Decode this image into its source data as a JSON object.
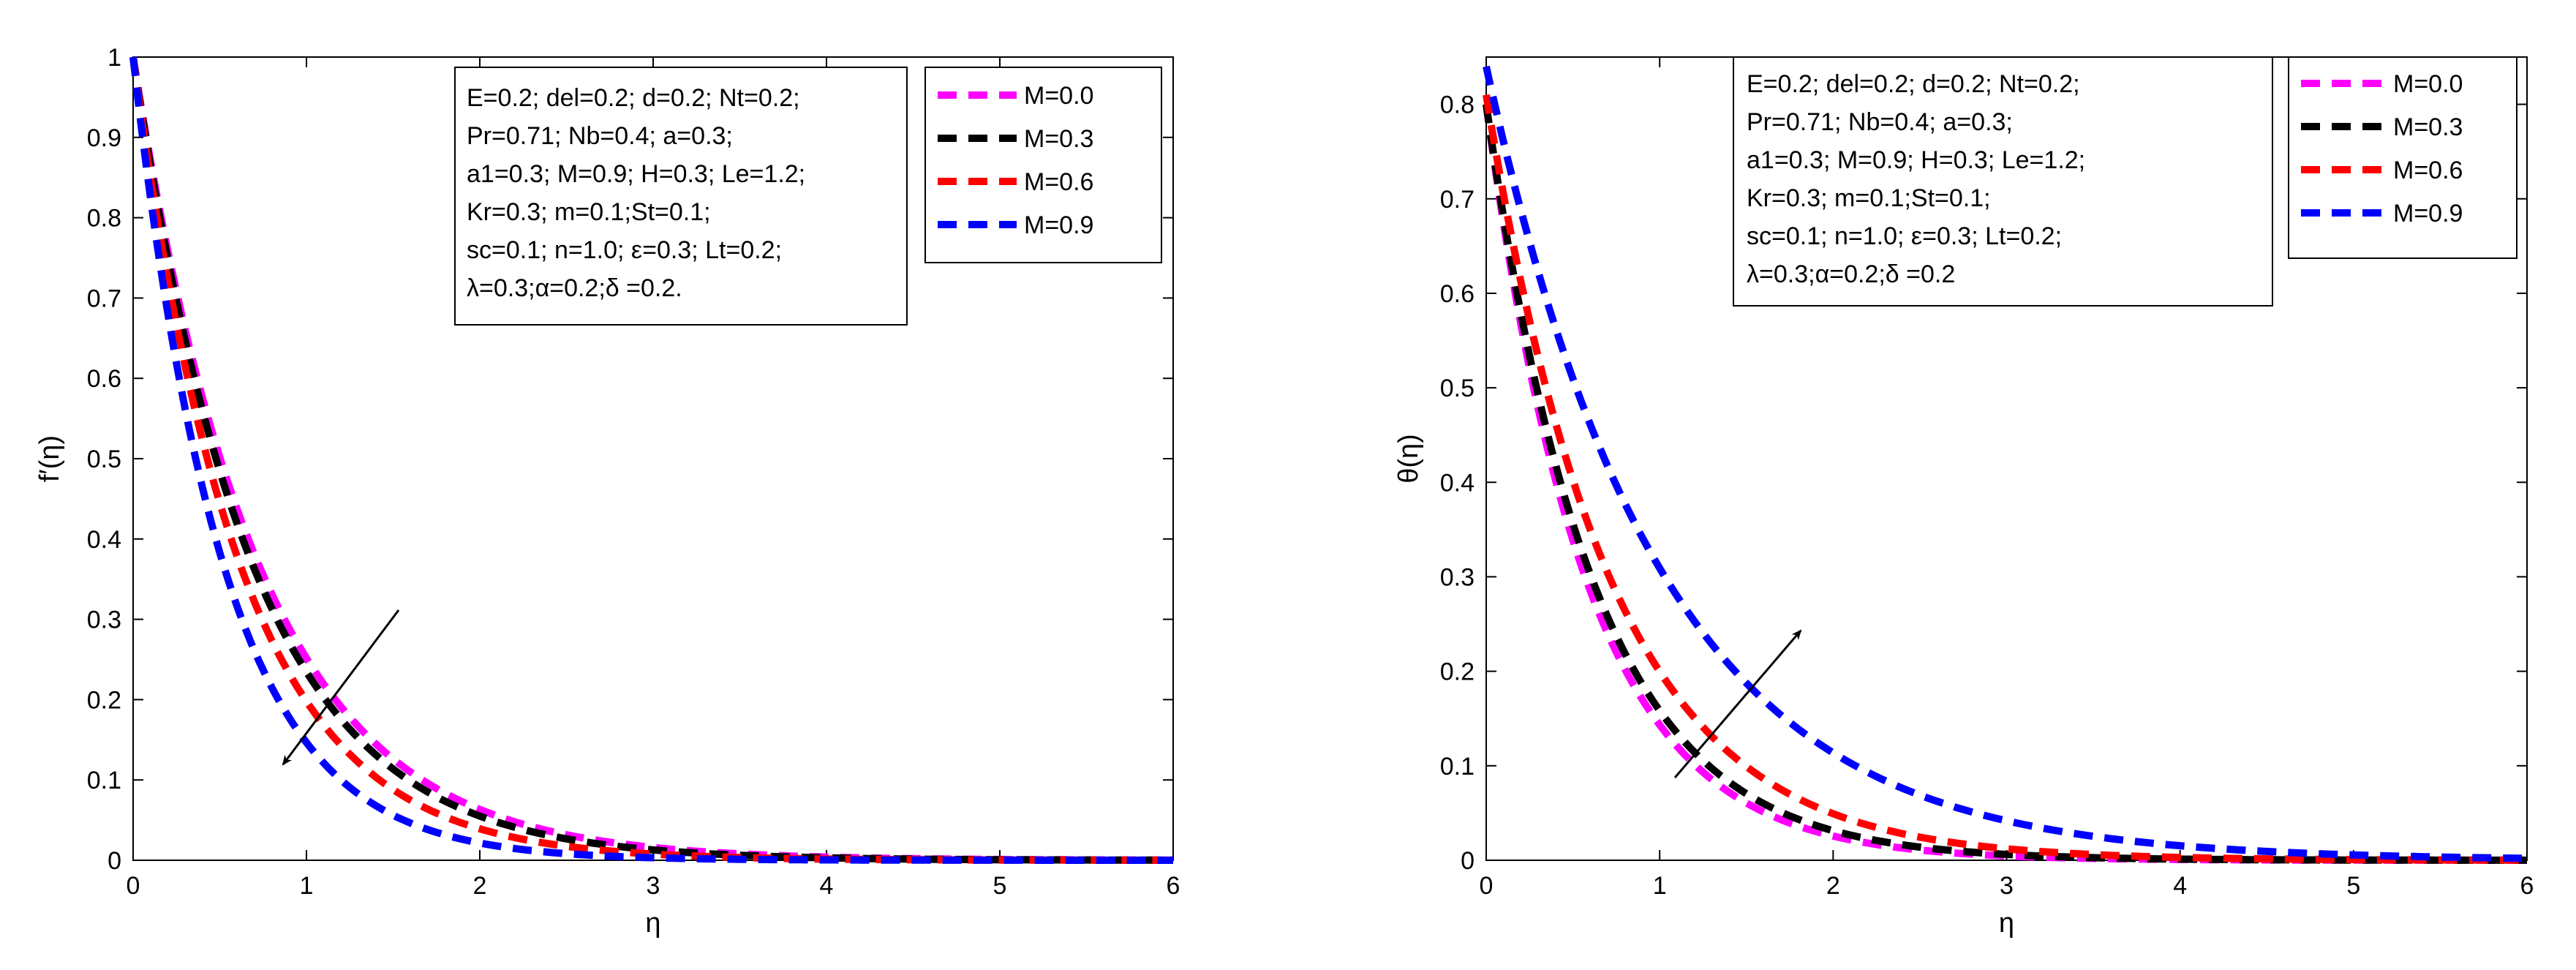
{
  "chart_data": [
    {
      "type": "line",
      "xlabel": "η",
      "ylabel": "f′(η)",
      "xlim": [
        0,
        6
      ],
      "ylim": [
        0,
        1
      ],
      "xticks": [
        "0",
        "1",
        "2",
        "3",
        "4",
        "5",
        "6"
      ],
      "yticks": [
        "0",
        "0.1",
        "0.2",
        "0.3",
        "0.4",
        "0.5",
        "0.6",
        "0.7",
        "0.8",
        "0.9",
        "1"
      ],
      "curve": "exponential_decay",
      "y0": 1.0,
      "series": [
        {
          "name": "M=0.0",
          "color": "#ff00ff",
          "decay_rate": 1.38
        },
        {
          "name": "M=0.3",
          "color": "#000000",
          "decay_rate": 1.45
        },
        {
          "name": "M=0.6",
          "color": "#ff0000",
          "decay_rate": 1.62
        },
        {
          "name": "M=0.9",
          "color": "#0000ff",
          "decay_rate": 1.92
        }
      ],
      "legend_position": "top-right",
      "params_position": "top-center",
      "params": [
        "E=0.2; del=0.2; d=0.2; Nt=0.2;",
        "Pr=0.71; Nb=0.4; a=0.3;",
        "a1=0.3; M=0.9; H=0.3; Le=1.2;",
        "Kr=0.3; m=0.1;St=0.1;",
        "sc=0.1; n=1.0; ε=0.3; Lt=0.2;",
        "λ=0.3;α=0.2;δ =0.2."
      ],
      "annotation": "arrow_down_left_through_curves"
    },
    {
      "type": "line",
      "xlabel": "η",
      "ylabel": "θ(η)",
      "xlim": [
        0,
        6
      ],
      "ylim": [
        0,
        0.85
      ],
      "xticks": [
        "0",
        "1",
        "2",
        "3",
        "4",
        "5",
        "6"
      ],
      "yticks": [
        "0",
        "0.1",
        "0.2",
        "0.3",
        "0.4",
        "0.5",
        "0.6",
        "0.7",
        "0.8"
      ],
      "curve": "exponential_decay",
      "series": [
        {
          "name": "M=0.0",
          "color": "#ff00ff",
          "y0": 0.8,
          "decay_rate": 1.72
        },
        {
          "name": "M=0.3",
          "color": "#000000",
          "y0": 0.8,
          "decay_rate": 1.62
        },
        {
          "name": "M=0.6",
          "color": "#ff0000",
          "y0": 0.81,
          "decay_rate": 1.4
        },
        {
          "name": "M=0.9",
          "color": "#0000ff",
          "y0": 0.84,
          "decay_rate": 1.0
        }
      ],
      "legend_position": "top-right",
      "params_position": "top-center",
      "params": [
        "E=0.2; del=0.2; d=0.2; Nt=0.2;",
        "Pr=0.71; Nb=0.4; a=0.3;",
        "a1=0.3; M=0.9; H=0.3; Le=1.2;",
        "Kr=0.3; m=0.1;St=0.1;",
        "sc=0.1; n=1.0; ε=0.3; Lt=0.2;",
        "λ=0.3;α=0.2;δ =0.2"
      ],
      "annotation": "arrow_up_right_through_curves"
    }
  ]
}
